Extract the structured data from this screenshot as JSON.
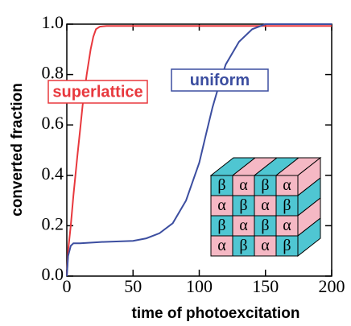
{
  "chart_data": {
    "type": "line",
    "x_label": "time of photoexcitation",
    "y_label": "converted fraction",
    "xlim": [
      0,
      200
    ],
    "ylim": [
      0,
      1
    ],
    "xticks": [
      0,
      50,
      100,
      150,
      200
    ],
    "yticks": [
      {
        "value": 0,
        "label": "0.0"
      },
      0.2,
      0.4,
      0.6,
      0.8,
      {
        "value": 1,
        "label": "1.0"
      }
    ],
    "series": [
      {
        "name": "superlattice",
        "color": "#e8383d",
        "x": [
          0,
          1,
          3,
          5,
          8,
          10,
          12,
          15,
          18,
          20,
          22,
          25,
          30,
          50,
          100,
          150,
          200
        ],
        "values": [
          0,
          0.1,
          0.2,
          0.32,
          0.48,
          0.58,
          0.68,
          0.8,
          0.9,
          0.95,
          0.98,
          0.99,
          0.993,
          0.993,
          0.993,
          0.993,
          0.993
        ]
      },
      {
        "name": "uniform",
        "color": "#3c4ea0",
        "x": [
          0,
          1,
          3,
          5,
          10,
          25,
          50,
          60,
          70,
          80,
          90,
          100,
          105,
          110,
          115,
          120,
          130,
          140,
          150,
          200
        ],
        "values": [
          0,
          0.08,
          0.12,
          0.13,
          0.13,
          0.135,
          0.14,
          0.15,
          0.17,
          0.21,
          0.3,
          0.45,
          0.56,
          0.67,
          0.76,
          0.84,
          0.93,
          0.98,
          1.0,
          1.0
        ]
      }
    ],
    "inset_labels": [
      [
        "β",
        "α",
        "β",
        "α"
      ],
      [
        "α",
        "β",
        "α",
        "β"
      ],
      [
        "β",
        "α",
        "β",
        "α"
      ],
      [
        "α",
        "β",
        "α",
        "β"
      ]
    ],
    "inset_colors": {
      "α": "#f5b8c4",
      "β": "#4fc6d2"
    }
  }
}
